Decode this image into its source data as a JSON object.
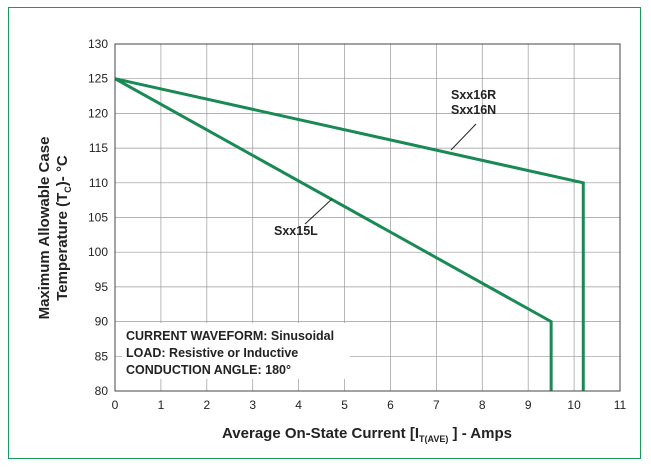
{
  "chart_data": {
    "type": "line",
    "xlabel": {
      "main": "Average On-State Current [I",
      "sub": "T(AVE)",
      "tail": "] - Amps"
    },
    "ylabel": {
      "line1": "Maximum Allowable Case",
      "line2_main": "Temperature (T",
      "line2_sub": "C",
      "line2_tail": ")- °C"
    },
    "xlim": [
      0,
      11
    ],
    "ylim": [
      80,
      130
    ],
    "xticks": [
      0,
      1,
      2,
      3,
      4,
      5,
      6,
      7,
      8,
      9,
      10,
      11
    ],
    "yticks": [
      80,
      85,
      90,
      95,
      100,
      105,
      110,
      115,
      120,
      125,
      130
    ],
    "grid": true,
    "series": [
      {
        "name_lines": [
          "Sxx16R",
          "Sxx16N"
        ],
        "color": "#1a8a55",
        "points": [
          [
            0,
            125
          ],
          [
            10.2,
            110
          ],
          [
            10.2,
            80
          ]
        ]
      },
      {
        "name_lines": [
          "Sxx15L"
        ],
        "color": "#1a8a55",
        "points": [
          [
            0,
            125
          ],
          [
            9.5,
            90
          ],
          [
            9.5,
            80
          ]
        ]
      }
    ],
    "annotations": [
      "CURRENT WAVEFORM: Sinusoidal",
      "LOAD: Resistive or Inductive",
      "CONDUCTION ANGLE: 180°"
    ]
  },
  "colors": {
    "frame": "#1a9a5a",
    "curve": "#1a8a55",
    "grid": "#9a9a9a"
  }
}
